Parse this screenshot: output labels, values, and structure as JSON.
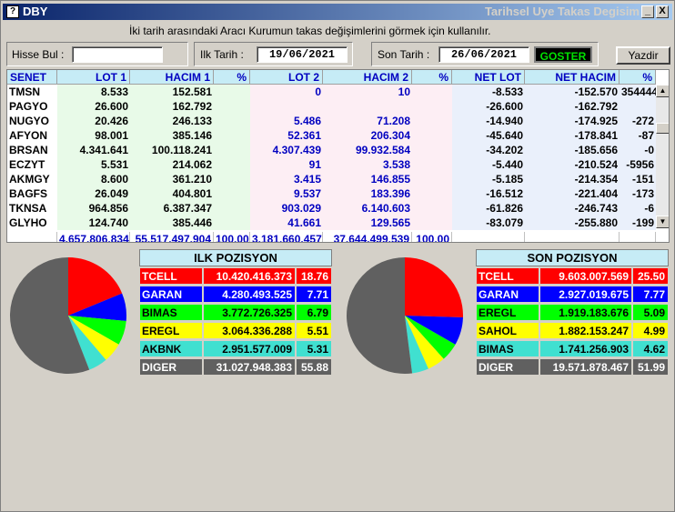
{
  "window": {
    "icon": "?",
    "title": "DBY",
    "subtitle": "Tarihsel Uye Takas Degisim",
    "min": "_",
    "close": "X"
  },
  "hint": "İki tarih arasındaki  Aracı Kurumun takas değişimlerini görmek için kullanılır.",
  "form": {
    "hisse_label": "Hisse Bul :",
    "hisse_value": "",
    "ilk_label": "Ilk Tarih :",
    "ilk_value": "19/06/2021",
    "son_label": "Son Tarih :",
    "son_value": "26/06/2021",
    "goster": "GOSTER",
    "yazdir": "Yazdir"
  },
  "table": {
    "headers": [
      "SENET",
      "LOT 1",
      "HACIM 1",
      "%",
      "LOT 2",
      "HACIM 2",
      "%",
      "NET LOT",
      "NET HACIM",
      "%"
    ],
    "rows": [
      [
        "TMSN",
        "8.533",
        "152.581",
        "",
        "0",
        "10",
        "",
        "-8.533",
        "-152.570",
        "354444"
      ],
      [
        "PAGYO",
        "26.600",
        "162.792",
        "",
        "",
        "",
        "",
        "-26.600",
        "-162.792",
        ""
      ],
      [
        "NUGYO",
        "20.426",
        "246.133",
        "",
        "5.486",
        "71.208",
        "",
        "-14.940",
        "-174.925",
        "-272"
      ],
      [
        "AFYON",
        "98.001",
        "385.146",
        "",
        "52.361",
        "206.304",
        "",
        "-45.640",
        "-178.841",
        "-87"
      ],
      [
        "BRSAN",
        "4.341.641",
        "100.118.241",
        "",
        "4.307.439",
        "99.932.584",
        "",
        "-34.202",
        "-185.656",
        "-0"
      ],
      [
        "ECZYT",
        "5.531",
        "214.062",
        "",
        "91",
        "3.538",
        "",
        "-5.440",
        "-210.524",
        "-5956"
      ],
      [
        "AKMGY",
        "8.600",
        "361.210",
        "",
        "3.415",
        "146.855",
        "",
        "-5.185",
        "-214.354",
        "-151"
      ],
      [
        "BAGFS",
        "26.049",
        "404.801",
        "",
        "9.537",
        "183.396",
        "",
        "-16.512",
        "-221.404",
        "-173"
      ],
      [
        "TKNSA",
        "964.856",
        "6.387.347",
        "",
        "903.029",
        "6.140.603",
        "",
        "-61.826",
        "-246.743",
        "-6"
      ],
      [
        "GLYHO",
        "124.740",
        "385.446",
        "",
        "41.661",
        "129.565",
        "",
        "-83.079",
        "-255.880",
        "-199"
      ]
    ],
    "totals": [
      "",
      "4.657.806.834",
      "55.517.497.904",
      "100,00",
      "3.181.660.457",
      "37.644.499.539",
      "100,00",
      "",
      "",
      ""
    ]
  },
  "ilk": {
    "title": "ILK POZISYON",
    "rows": [
      {
        "name": "TCELL",
        "value": "10.420.416.373",
        "pct": "18.76",
        "pct_num": 18.76,
        "color": "#ff0000",
        "text": "#ffffff"
      },
      {
        "name": "GARAN",
        "value": "4.280.493.525",
        "pct": "7.71",
        "pct_num": 7.71,
        "color": "#0000ff",
        "text": "#ffffff"
      },
      {
        "name": "BIMAS",
        "value": "3.772.726.325",
        "pct": "6.79",
        "pct_num": 6.79,
        "color": "#00ff00",
        "text": "#000000"
      },
      {
        "name": "EREGL",
        "value": "3.064.336.288",
        "pct": "5.51",
        "pct_num": 5.51,
        "color": "#ffff00",
        "text": "#000000"
      },
      {
        "name": "AKBNK",
        "value": "2.951.577.009",
        "pct": "5.31",
        "pct_num": 5.31,
        "color": "#40e0d0",
        "text": "#000000"
      },
      {
        "name": "DIGER",
        "value": "31.027.948.383",
        "pct": "55.88",
        "pct_num": 55.88,
        "color": "#606060",
        "text": "#ffffff"
      }
    ]
  },
  "son": {
    "title": "SON POZISYON",
    "rows": [
      {
        "name": "TCELL",
        "value": "9.603.007.569",
        "pct": "25.50",
        "pct_num": 25.5,
        "color": "#ff0000",
        "text": "#ffffff"
      },
      {
        "name": "GARAN",
        "value": "2.927.019.675",
        "pct": "7.77",
        "pct_num": 7.77,
        "color": "#0000ff",
        "text": "#ffffff"
      },
      {
        "name": "EREGL",
        "value": "1.919.183.676",
        "pct": "5.09",
        "pct_num": 5.09,
        "color": "#00ff00",
        "text": "#000000"
      },
      {
        "name": "SAHOL",
        "value": "1.882.153.247",
        "pct": "4.99",
        "pct_num": 4.99,
        "color": "#ffff00",
        "text": "#000000"
      },
      {
        "name": "BIMAS",
        "value": "1.741.256.903",
        "pct": "4.62",
        "pct_num": 4.62,
        "color": "#40e0d0",
        "text": "#000000"
      },
      {
        "name": "DIGER",
        "value": "19.571.878.467",
        "pct": "51.99",
        "pct_num": 51.99,
        "color": "#606060",
        "text": "#ffffff"
      }
    ]
  }
}
